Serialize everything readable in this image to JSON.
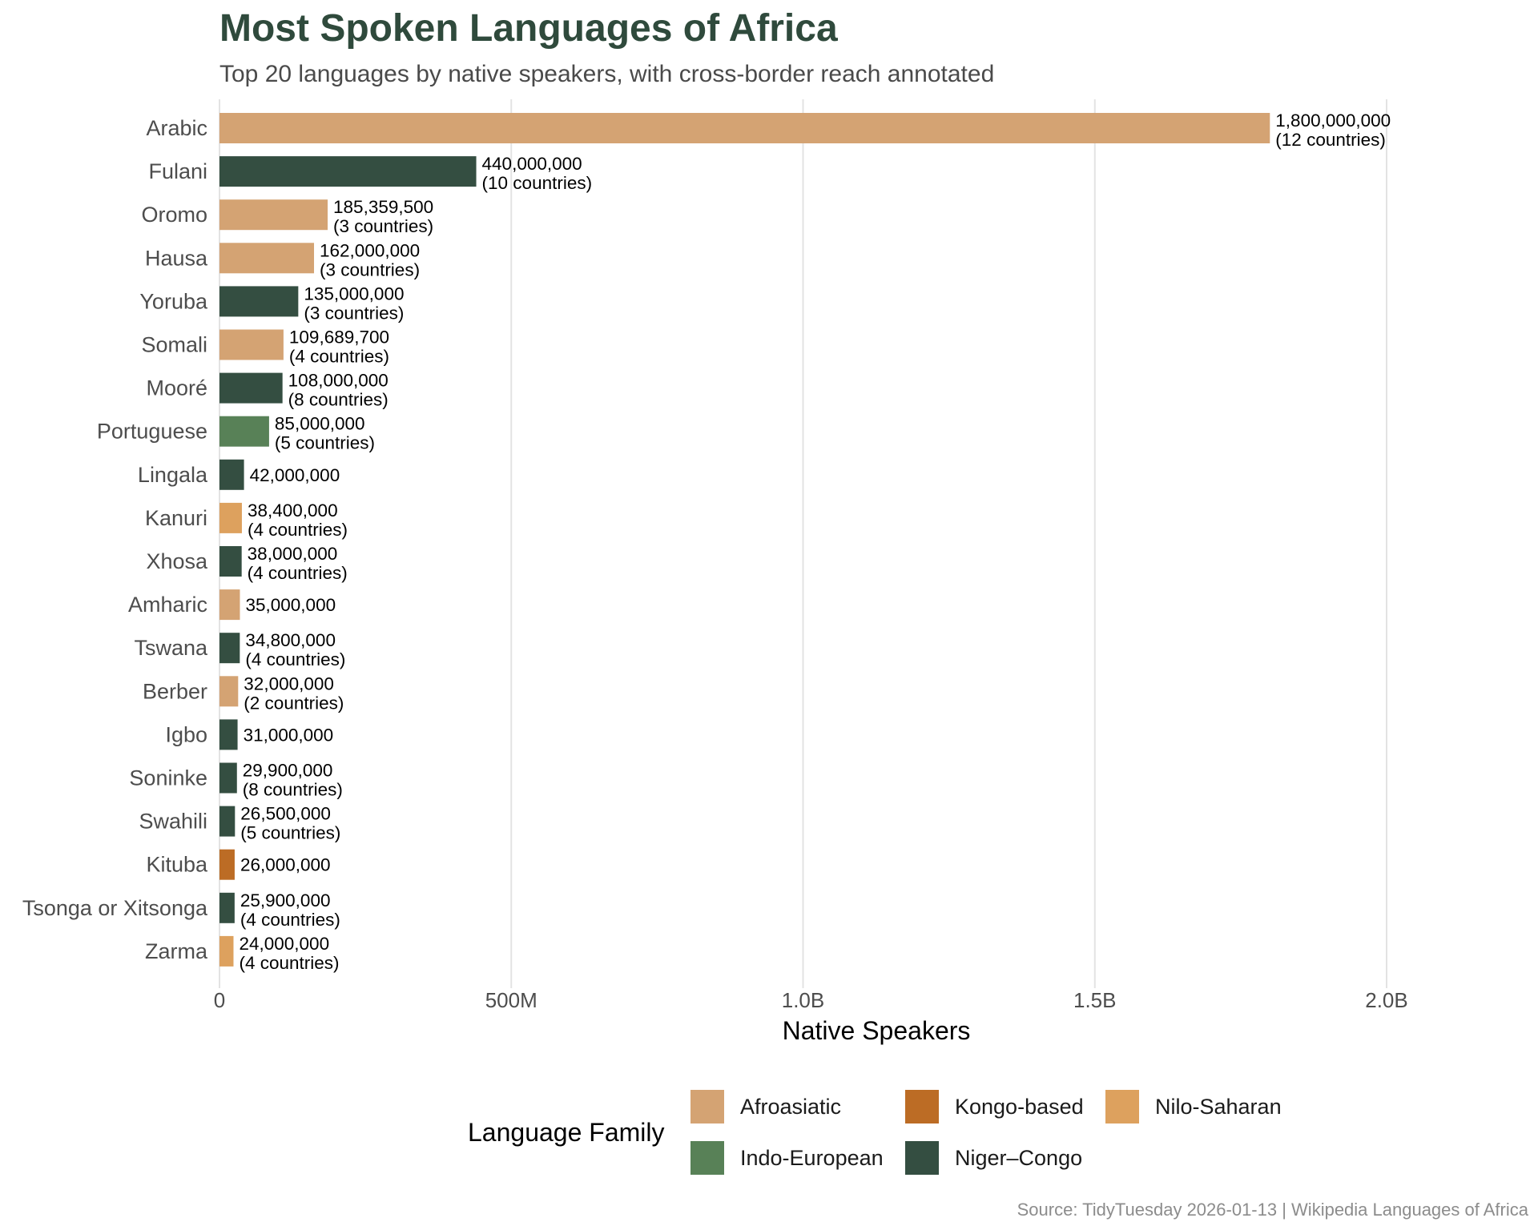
{
  "chart_data": {
    "type": "bar",
    "orientation": "horizontal",
    "title": "Most Spoken Languages of Africa",
    "subtitle": "Top 20 languages by native speakers, with cross-border reach annotated",
    "xlabel": "Native Speakers",
    "ylabel": "",
    "xlim": [
      0,
      2000000000
    ],
    "x_ticks": [
      0,
      500000000,
      1000000000,
      1500000000,
      2000000000
    ],
    "x_tick_labels": [
      "0",
      "500M",
      "1.0B",
      "1.5B",
      "2.0B"
    ],
    "grid": "vertical major",
    "legend_title": "Language Family",
    "legend_position": "bottom",
    "families": [
      {
        "name": "Afroasiatic",
        "color": "#d4a373"
      },
      {
        "name": "Kongo-based",
        "color": "#bc6c25"
      },
      {
        "name": "Nilo-Saharan",
        "color": "#dda15e"
      },
      {
        "name": "Indo-European",
        "color": "#588157"
      },
      {
        "name": "Niger–Congo",
        "color": "#344e41"
      }
    ],
    "bars": [
      {
        "category": "Arabic",
        "value": 1800000000,
        "family": "Afroasiatic",
        "label": "1,800,000,000",
        "countries": "(12 countries)"
      },
      {
        "category": "Fulani",
        "value": 440000000,
        "family": "Niger–Congo",
        "label": "440,000,000",
        "countries": "(10 countries)"
      },
      {
        "category": "Oromo",
        "value": 185359500,
        "family": "Afroasiatic",
        "label": "185,359,500",
        "countries": "(3 countries)"
      },
      {
        "category": "Hausa",
        "value": 162000000,
        "family": "Afroasiatic",
        "label": "162,000,000",
        "countries": "(3 countries)"
      },
      {
        "category": "Yoruba",
        "value": 135000000,
        "family": "Niger–Congo",
        "label": "135,000,000",
        "countries": "(3 countries)"
      },
      {
        "category": "Somali",
        "value": 109689700,
        "family": "Afroasiatic",
        "label": "109,689,700",
        "countries": "(4 countries)"
      },
      {
        "category": "Mooré",
        "value": 108000000,
        "family": "Niger–Congo",
        "label": "108,000,000",
        "countries": "(8 countries)"
      },
      {
        "category": "Portuguese",
        "value": 85000000,
        "family": "Indo-European",
        "label": "85,000,000",
        "countries": "(5 countries)"
      },
      {
        "category": "Lingala",
        "value": 42000000,
        "family": "Niger–Congo",
        "label": "42,000,000",
        "countries": ""
      },
      {
        "category": "Kanuri",
        "value": 38400000,
        "family": "Nilo-Saharan",
        "label": "38,400,000",
        "countries": "(4 countries)"
      },
      {
        "category": "Xhosa",
        "value": 38000000,
        "family": "Niger–Congo",
        "label": "38,000,000",
        "countries": "(4 countries)"
      },
      {
        "category": "Amharic",
        "value": 35000000,
        "family": "Afroasiatic",
        "label": "35,000,000",
        "countries": ""
      },
      {
        "category": "Tswana",
        "value": 34800000,
        "family": "Niger–Congo",
        "label": "34,800,000",
        "countries": "(4 countries)"
      },
      {
        "category": "Berber",
        "value": 32000000,
        "family": "Afroasiatic",
        "label": "32,000,000",
        "countries": "(2 countries)"
      },
      {
        "category": "Igbo",
        "value": 31000000,
        "family": "Niger–Congo",
        "label": "31,000,000",
        "countries": ""
      },
      {
        "category": "Soninke",
        "value": 29900000,
        "family": "Niger–Congo",
        "label": "29,900,000",
        "countries": "(8 countries)"
      },
      {
        "category": "Swahili",
        "value": 26500000,
        "family": "Niger–Congo",
        "label": "26,500,000",
        "countries": "(5 countries)"
      },
      {
        "category": "Kituba",
        "value": 26000000,
        "family": "Kongo-based",
        "label": "26,000,000",
        "countries": ""
      },
      {
        "category": "Tsonga or Xitsonga",
        "value": 25900000,
        "family": "Niger–Congo",
        "label": "25,900,000",
        "countries": "(4 countries)"
      },
      {
        "category": "Zarma",
        "value": 24000000,
        "family": "Nilo-Saharan",
        "label": "24,000,000",
        "countries": "(4 countries)"
      }
    ],
    "caption": "Source: TidyTuesday 2026-01-13 | Wikipedia Languages of Africa"
  }
}
